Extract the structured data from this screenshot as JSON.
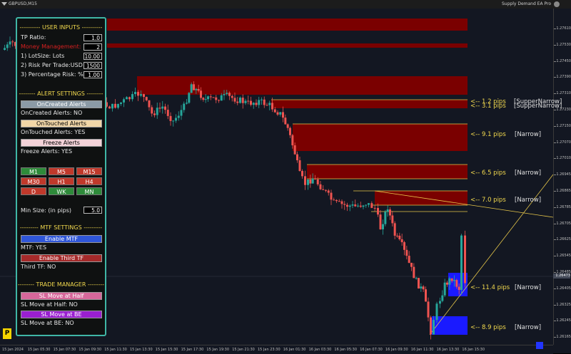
{
  "window": {
    "chart_title": "GBPUSD,M15",
    "ea_name": "Supply Demand EA Pro"
  },
  "price_axis": {
    "labels": [
      "1.27610",
      "1.27530",
      "1.27450",
      "1.27390",
      "1.27310",
      "1.27230",
      "1.27150",
      "1.27070",
      "1.27010",
      "1.26945",
      "1.26865",
      "1.26785",
      "1.26705",
      "1.26625",
      "1.26545",
      "1.26485",
      "1.26405",
      "1.26325",
      "1.26245",
      "1.26165"
    ],
    "current_price": "1.26473"
  },
  "time_axis": {
    "labels": [
      "15 Jan 2024",
      "15 Jan 05:30",
      "15 Jan 07:30",
      "15 Jan 09:30",
      "15 Jan 11:30",
      "15 Jan 13:30",
      "15 Jan 15:30",
      "15 Jan 17:30",
      "15 Jan 19:30",
      "15 Jan 21:30",
      "15 Jan 23:30",
      "16 Jan 01:30",
      "16 Jan 03:30",
      "16 Jan 05:30",
      "16 Jan 07:30",
      "16 Jan 09:30",
      "16 Jan 11:30",
      "16 Jan 13:30",
      "16 Jan 15:30"
    ]
  },
  "zones": [
    {
      "pips": "<-- 1.2 pips",
      "tag": "[SupperNarrow]"
    },
    {
      "pips": "<-- 3.1 pips",
      "tag": "[SupperNarrow]"
    },
    {
      "pips": "<-- 9.1 pips",
      "tag": "[Narrow]"
    },
    {
      "pips": "<-- 6.5 pips",
      "tag": "[Narrow]"
    },
    {
      "pips": "<-- 7.0 pips",
      "tag": "[Narrow]"
    },
    {
      "pips": "<-- 11.4 pips",
      "tag": "[Narrow]"
    },
    {
      "pips": "<-- 8.9 pips",
      "tag": "[Narrow]"
    }
  ],
  "panel": {
    "user_inputs_title": "---------- USER INPUTS ----------",
    "tp_ratio_label": "TP Ratio:",
    "tp_ratio_value": "1.0",
    "money_mgmt_label": "Money Management:",
    "money_mgmt_value": "2",
    "lot_size_label": "1) LotSize: Lots",
    "lot_size_value": "10.00",
    "risk_trade_label": "2) Risk Per Trade:USD",
    "risk_trade_value": "1500",
    "pct_risk_label": "3) Percentage Risk: %",
    "pct_risk_value": "1.00",
    "alert_title": "-------- ALERT SETTINGS --------",
    "oncreated_btn": "OnCreated Alerts",
    "oncreated_status": "OnCreated Alerts: NO",
    "ontouched_btn": "OnTouched Alerts",
    "ontouched_status": "OnTouched Alerts: YES",
    "freeze_btn": "Freeze Alerts",
    "freeze_status": "Freeze Alerts: YES",
    "timeframes": [
      "M1",
      "M5",
      "M15",
      "M30",
      "H1",
      "H4",
      "D",
      "WK",
      "MN"
    ],
    "min_size_label": "Min Size: (in pips)",
    "min_size_value": "5.0",
    "mtf_title": "--------- MTF SETTINGS ---------",
    "enable_mtf_btn": "Enable MTF",
    "mtf_status": "MTF: YES",
    "enable_third_btn": "Enable Third TF",
    "third_status": "Third TF: NO",
    "trade_title": "-------- TRADE MANAGER --------",
    "sl_half_btn": "SL Move at Half",
    "sl_half_status": "SL Move at Half: NO",
    "sl_be_btn": "SL Move at BE",
    "sl_be_status": "SL Move at BE: NO",
    "badge": "P"
  },
  "colors": {
    "panel_border": "#3fb6a6",
    "title_yellow": "#f2d94e",
    "supply_zone": "#7a0000",
    "demand_zone": "#1a1aff",
    "bull_candle": "#26a69a",
    "bear_candle": "#ef5350",
    "zone_label": "#f2d94e"
  }
}
